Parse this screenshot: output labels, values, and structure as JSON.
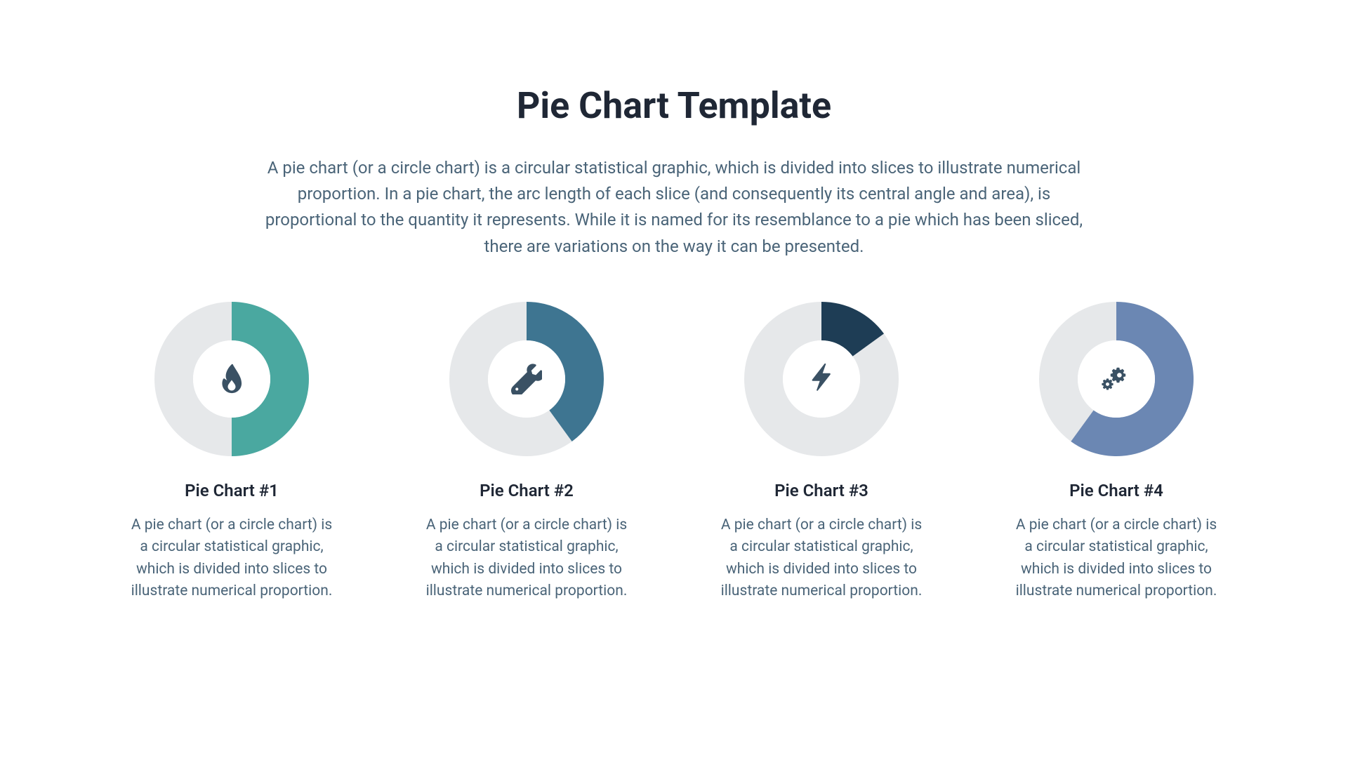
{
  "page": {
    "title": "Pie Chart Template",
    "subtitle": "A pie chart (or a circle chart) is a circular statistical graphic, which is divided into slices to illustrate numerical proportion. In a pie chart, the arc length of each slice (and consequently its central angle and area), is proportional to the quantity it represents. While it is named for its resemblance to a pie which has been sliced, there are variations on the way it can be presented.",
    "title_color": "#1f2735",
    "subtitle_color": "#4a6478",
    "title_fontsize": 52,
    "subtitle_fontsize": 24,
    "background_color": "#ffffff"
  },
  "donut_defaults": {
    "outer_radius": 110,
    "inner_radius": 55,
    "track_color": "#e6e8ea",
    "icon_color": "#3a5164"
  },
  "charts": [
    {
      "type": "donut",
      "title": "Pie Chart #1",
      "description": "A pie chart (or a circle chart) is a circular statistical graphic, which is divided into slices to illustrate numerical proportion.",
      "value_percent": 50,
      "slice_color": "#4aa8a0",
      "icon": "flame"
    },
    {
      "type": "donut",
      "title": "Pie Chart #2",
      "description": "A pie chart (or a circle chart) is a circular statistical graphic, which is divided into slices to illustrate numerical proportion.",
      "value_percent": 40,
      "slice_color": "#3e7591",
      "icon": "wrench"
    },
    {
      "type": "donut",
      "title": "Pie Chart #3",
      "description": "A pie chart (or a circle chart) is a circular statistical graphic, which is divided into slices to illustrate numerical proportion.",
      "value_percent": 15,
      "slice_color": "#1e3d55",
      "icon": "bolt"
    },
    {
      "type": "donut",
      "title": "Pie Chart #4",
      "description": "A pie chart (or a circle chart) is a circular statistical graphic, which is divided into slices to illustrate numerical proportion.",
      "value_percent": 60,
      "slice_color": "#6b87b3",
      "icon": "gears"
    }
  ]
}
